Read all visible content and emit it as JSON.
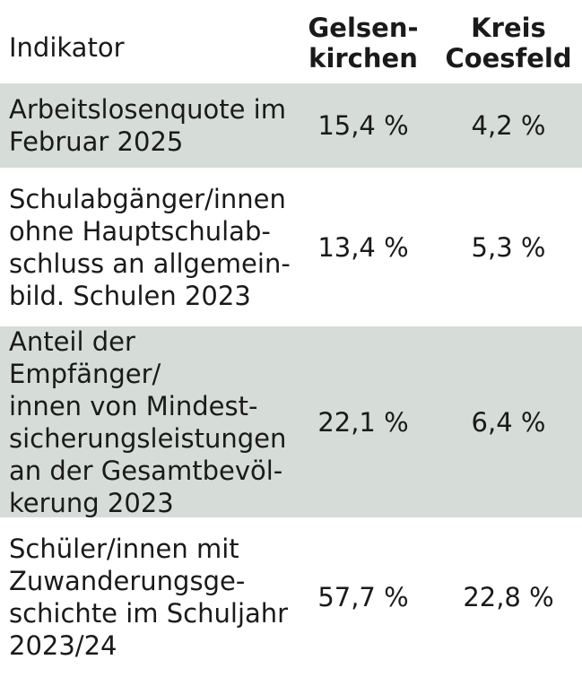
{
  "header": {
    "indicator": "Indikator",
    "col1": "Gelsen-\nkirchen",
    "col2": "Kreis\nCoesfeld"
  },
  "rows": [
    {
      "indicator": "Arbeitslosenquote im\nFebruar 2025",
      "gelsenkirchen": "15,4 %",
      "coesfeld": "4,2 %"
    },
    {
      "indicator": "Schulabgänger/innen\nohne Hauptschulab-\nschluss an allgemein-\nbild. Schulen 2023",
      "gelsenkirchen": "13,4 %",
      "coesfeld": "5,3 %"
    },
    {
      "indicator": "Anteil der Empfänger/\ninnen von Mindest-\nsicherungsleistungen\nan der Gesamtbevöl-\nkerung 2023",
      "gelsenkirchen": "22,1 %",
      "coesfeld": "6,4 %"
    },
    {
      "indicator": "Schüler/innen mit\nZuwanderungsge-\nschichte im Schuljahr\n2023/24",
      "gelsenkirchen": "57,7 %",
      "coesfeld": "22,8 %"
    }
  ],
  "colors": {
    "shaded_row": "#d6dcd8",
    "text": "#1a1a1a"
  }
}
